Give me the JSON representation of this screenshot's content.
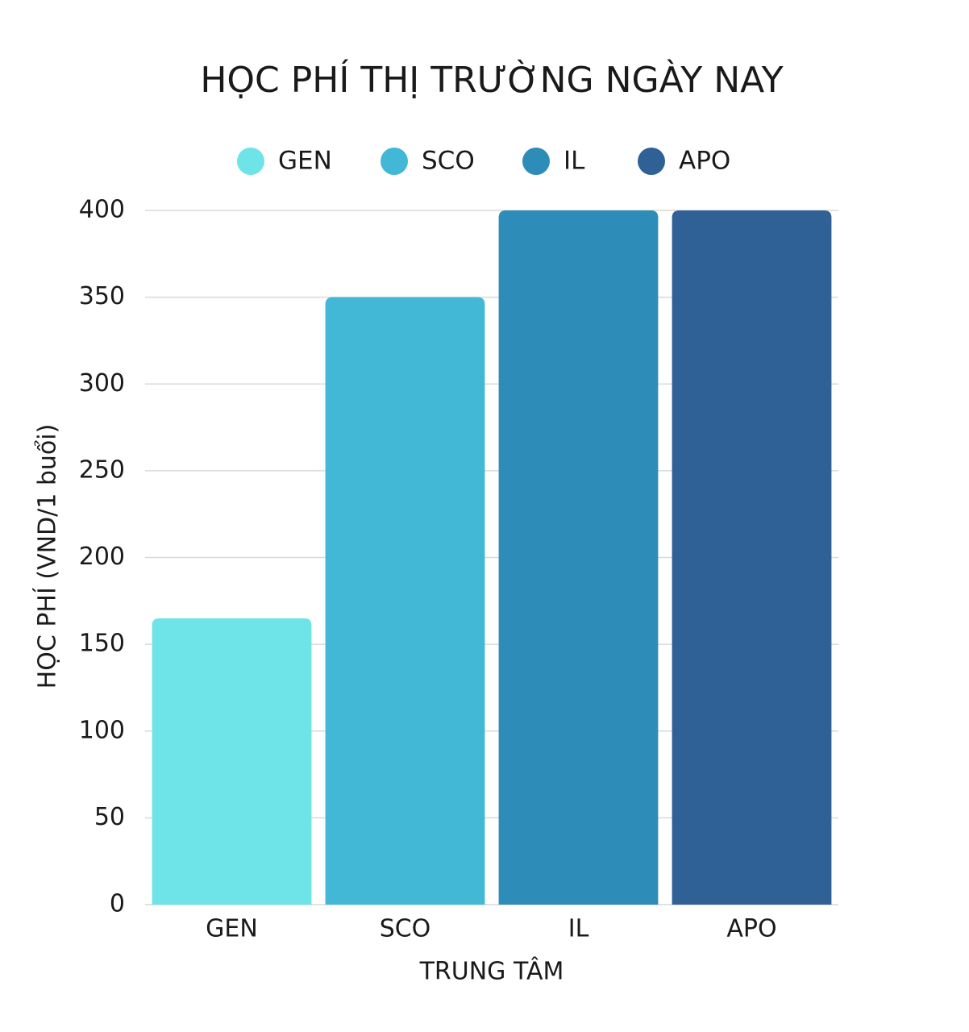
{
  "chart_data": {
    "type": "bar",
    "title": "HỌC PHÍ THỊ TRƯỜNG NGÀY NAY",
    "x_label": "TRUNG TÂM",
    "y_label": "HỌC PHÍ (VND/1 buổi)",
    "categories": [
      "GEN",
      "SCO",
      "IL",
      "APO"
    ],
    "values": [
      165,
      350,
      400,
      400
    ],
    "colors": [
      "#6ee3e8",
      "#42b8d6",
      "#2e8cb9",
      "#2f6196"
    ],
    "ylim": [
      0,
      400
    ],
    "yticks": [
      0,
      50,
      100,
      150,
      200,
      250,
      300,
      350,
      400
    ],
    "grid": true,
    "legend": "top"
  }
}
